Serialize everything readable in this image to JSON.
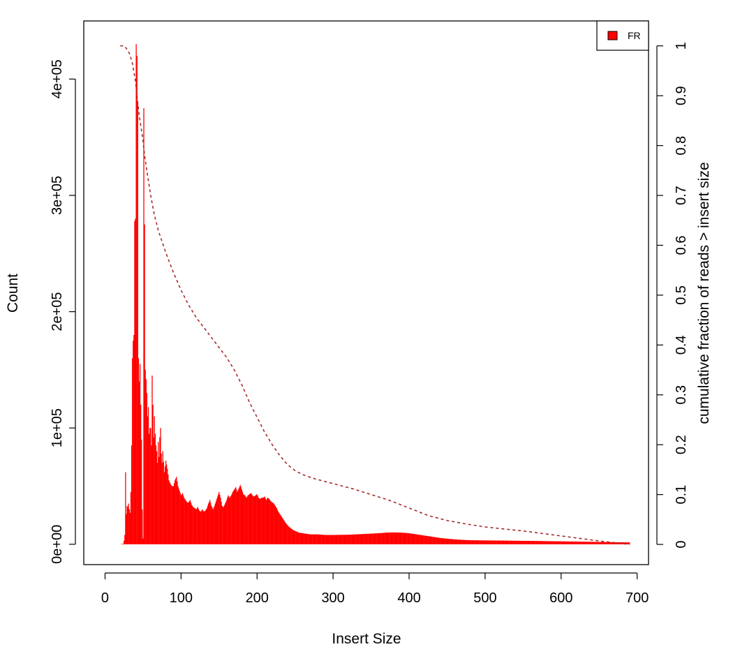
{
  "chart_data": {
    "type": "bar",
    "title": "",
    "xlabel": "Insert Size",
    "ylabel": "Count",
    "y2label": "cumulative fraction of reads > insert size",
    "xlim": [
      -28,
      715
    ],
    "ylim": [
      -17500,
      450000
    ],
    "y2lim": [
      -0.0405,
      1.05
    ],
    "xticks": [
      0,
      100,
      200,
      300,
      400,
      500,
      600,
      700
    ],
    "xtick_labels": [
      "0",
      "100",
      "200",
      "300",
      "400",
      "500",
      "600",
      "700"
    ],
    "yticks": [
      0,
      100000,
      200000,
      300000,
      400000
    ],
    "ytick_labels": [
      "0e+00",
      "1e+05",
      "2e+05",
      "3e+05",
      "4e+05"
    ],
    "y2ticks": [
      0,
      0.1,
      0.2,
      0.3,
      0.4,
      0.5,
      0.6,
      0.7,
      0.8,
      0.9,
      1
    ],
    "y2tick_labels": [
      "0",
      "0.1",
      "0.2",
      "0.3",
      "0.4",
      "0.5",
      "0.6",
      "0.7",
      "0.8",
      "0.9",
      "1"
    ],
    "grid": false,
    "legend": {
      "position": "top-right",
      "entries": [
        {
          "label": "FR",
          "color": "#ff0000"
        }
      ]
    },
    "series": [
      {
        "name": "FR",
        "color": "#ff0000",
        "kind": "histogram",
        "x_range": [
          20,
          690
        ],
        "points": [
          [
            20,
            0
          ],
          [
            24,
            500
          ],
          [
            25,
            3000
          ],
          [
            26,
            8000
          ],
          [
            27,
            62000
          ],
          [
            28,
            26000
          ],
          [
            29,
            33000
          ],
          [
            30,
            32000
          ],
          [
            31,
            35000
          ],
          [
            32,
            30000
          ],
          [
            33,
            27000
          ],
          [
            34,
            45000
          ],
          [
            35,
            85000
          ],
          [
            36,
            160000
          ],
          [
            37,
            175000
          ],
          [
            38,
            180000
          ],
          [
            39,
            278000
          ],
          [
            40,
            280000
          ],
          [
            41,
            430000
          ],
          [
            42,
            420000
          ],
          [
            43,
            380000
          ],
          [
            44,
            160000
          ],
          [
            45,
            140000
          ],
          [
            46,
            155000
          ],
          [
            47,
            120000
          ],
          [
            48,
            90000
          ],
          [
            49,
            30000
          ],
          [
            50,
            5000
          ],
          [
            51,
            375000
          ],
          [
            52,
            275000
          ],
          [
            53,
            150000
          ],
          [
            54,
            142000
          ],
          [
            55,
            130000
          ],
          [
            56,
            110000
          ],
          [
            57,
            118000
          ],
          [
            58,
            95000
          ],
          [
            59,
            100000
          ],
          [
            60,
            100000
          ],
          [
            61,
            85000
          ],
          [
            62,
            145000
          ],
          [
            63,
            120000
          ],
          [
            64,
            92000
          ],
          [
            65,
            110000
          ],
          [
            66,
            95000
          ],
          [
            67,
            85000
          ],
          [
            68,
            80000
          ],
          [
            69,
            70000
          ],
          [
            70,
            88000
          ],
          [
            71,
            75000
          ],
          [
            72,
            92000
          ],
          [
            73,
            100000
          ],
          [
            74,
            78000
          ],
          [
            75,
            70000
          ],
          [
            76,
            80000
          ],
          [
            78,
            62000
          ],
          [
            80,
            72000
          ],
          [
            82,
            65000
          ],
          [
            84,
            55000
          ],
          [
            86,
            52000
          ],
          [
            88,
            50000
          ],
          [
            90,
            50000
          ],
          [
            92,
            55000
          ],
          [
            94,
            58000
          ],
          [
            96,
            50000
          ],
          [
            98,
            46000
          ],
          [
            100,
            42000
          ],
          [
            102,
            44000
          ],
          [
            104,
            40000
          ],
          [
            106,
            38000
          ],
          [
            108,
            36000
          ],
          [
            110,
            36000
          ],
          [
            112,
            38000
          ],
          [
            114,
            34000
          ],
          [
            116,
            32000
          ],
          [
            118,
            31000
          ],
          [
            120,
            30000
          ],
          [
            122,
            32000
          ],
          [
            124,
            29000
          ],
          [
            126,
            28000
          ],
          [
            128,
            30000
          ],
          [
            130,
            28000
          ],
          [
            132,
            29000
          ],
          [
            134,
            31000
          ],
          [
            136,
            35000
          ],
          [
            138,
            38000
          ],
          [
            140,
            33000
          ],
          [
            142,
            30000
          ],
          [
            144,
            33000
          ],
          [
            146,
            37000
          ],
          [
            148,
            41000
          ],
          [
            150,
            45000
          ],
          [
            152,
            40000
          ],
          [
            154,
            33000
          ],
          [
            156,
            32000
          ],
          [
            158,
            35000
          ],
          [
            160,
            38000
          ],
          [
            162,
            42000
          ],
          [
            164,
            40000
          ],
          [
            166,
            42000
          ],
          [
            168,
            45000
          ],
          [
            170,
            47000
          ],
          [
            172,
            49000
          ],
          [
            174,
            45000
          ],
          [
            176,
            48000
          ],
          [
            178,
            51000
          ],
          [
            180,
            47000
          ],
          [
            182,
            43000
          ],
          [
            184,
            42000
          ],
          [
            186,
            40000
          ],
          [
            188,
            42000
          ],
          [
            190,
            43000
          ],
          [
            192,
            44000
          ],
          [
            194,
            42000
          ],
          [
            196,
            41000
          ],
          [
            198,
            42000
          ],
          [
            200,
            43000
          ],
          [
            202,
            40000
          ],
          [
            204,
            39000
          ],
          [
            206,
            40000
          ],
          [
            208,
            40000
          ],
          [
            210,
            41000
          ],
          [
            212,
            38000
          ],
          [
            214,
            40000
          ],
          [
            216,
            39000
          ],
          [
            218,
            37000
          ],
          [
            220,
            36000
          ],
          [
            222,
            35000
          ],
          [
            224,
            33000
          ],
          [
            226,
            31000
          ],
          [
            228,
            28000
          ],
          [
            230,
            26000
          ],
          [
            232,
            24000
          ],
          [
            234,
            22000
          ],
          [
            236,
            20000
          ],
          [
            238,
            18000
          ],
          [
            240,
            16500
          ],
          [
            242,
            15000
          ],
          [
            244,
            14000
          ],
          [
            246,
            13000
          ],
          [
            248,
            12000
          ],
          [
            250,
            11500
          ],
          [
            255,
            10000
          ],
          [
            260,
            9500
          ],
          [
            265,
            9000
          ],
          [
            270,
            8500
          ],
          [
            280,
            8500
          ],
          [
            290,
            8000
          ],
          [
            300,
            8000
          ],
          [
            320,
            8200
          ],
          [
            340,
            8800
          ],
          [
            360,
            9500
          ],
          [
            370,
            10000
          ],
          [
            380,
            10200
          ],
          [
            390,
            10000
          ],
          [
            400,
            9500
          ],
          [
            410,
            8500
          ],
          [
            420,
            7500
          ],
          [
            430,
            6500
          ],
          [
            440,
            5500
          ],
          [
            450,
            4800
          ],
          [
            460,
            4200
          ],
          [
            470,
            3800
          ],
          [
            480,
            3500
          ],
          [
            500,
            3300
          ],
          [
            520,
            3200
          ],
          [
            540,
            3000
          ],
          [
            560,
            2900
          ],
          [
            580,
            2700
          ],
          [
            600,
            2500
          ],
          [
            620,
            2300
          ],
          [
            640,
            2100
          ],
          [
            660,
            1900
          ],
          [
            680,
            1700
          ],
          [
            690,
            1600
          ]
        ]
      },
      {
        "name": "cumulative",
        "color": "#a52a2a",
        "axis": "right",
        "style": "dashed",
        "points": [
          [
            20,
            1.0
          ],
          [
            25,
            1.0
          ],
          [
            28,
            0.995
          ],
          [
            32,
            0.985
          ],
          [
            36,
            0.965
          ],
          [
            40,
            0.93
          ],
          [
            42,
            0.9
          ],
          [
            45,
            0.86
          ],
          [
            48,
            0.83
          ],
          [
            50,
            0.81
          ],
          [
            52,
            0.78
          ],
          [
            56,
            0.74
          ],
          [
            60,
            0.7
          ],
          [
            65,
            0.66
          ],
          [
            70,
            0.63
          ],
          [
            80,
            0.585
          ],
          [
            90,
            0.545
          ],
          [
            100,
            0.51
          ],
          [
            110,
            0.48
          ],
          [
            120,
            0.455
          ],
          [
            130,
            0.435
          ],
          [
            140,
            0.415
          ],
          [
            150,
            0.395
          ],
          [
            160,
            0.375
          ],
          [
            170,
            0.35
          ],
          [
            180,
            0.32
          ],
          [
            190,
            0.285
          ],
          [
            200,
            0.255
          ],
          [
            210,
            0.225
          ],
          [
            220,
            0.2
          ],
          [
            230,
            0.178
          ],
          [
            240,
            0.16
          ],
          [
            250,
            0.148
          ],
          [
            260,
            0.14
          ],
          [
            275,
            0.132
          ],
          [
            300,
            0.122
          ],
          [
            325,
            0.112
          ],
          [
            350,
            0.1
          ],
          [
            375,
            0.088
          ],
          [
            400,
            0.073
          ],
          [
            425,
            0.058
          ],
          [
            450,
            0.048
          ],
          [
            475,
            0.041
          ],
          [
            500,
            0.035
          ],
          [
            550,
            0.027
          ],
          [
            600,
            0.017
          ],
          [
            650,
            0.007
          ],
          [
            690,
            0.0
          ]
        ]
      }
    ]
  }
}
